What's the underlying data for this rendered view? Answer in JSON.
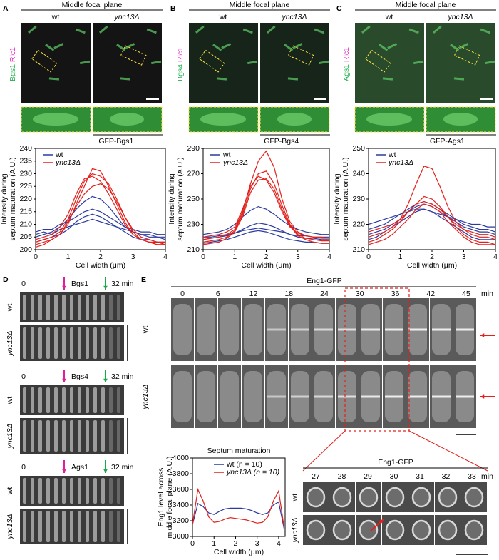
{
  "panels": {
    "A": {
      "letter": "A",
      "header": "Middle focal plane",
      "col_labels": [
        "wt",
        "ync13Δ"
      ],
      "channel": [
        "Bgs1",
        "Rlc1"
      ]
    },
    "B": {
      "letter": "B",
      "header": "Middle focal plane",
      "col_labels": [
        "wt",
        "ync13Δ"
      ],
      "channel": [
        "Bgs4",
        "Rlc1"
      ]
    },
    "C": {
      "letter": "C",
      "header": "Middle focal plane",
      "col_labels": [
        "wt",
        "ync13Δ"
      ],
      "channel": [
        "Ags1",
        "Rlc1"
      ]
    },
    "D": {
      "letter": "D",
      "kymographs": [
        {
          "start": "0",
          "protein": "Bgs1",
          "end": "32 min",
          "rows": [
            "wt",
            "ync13Δ"
          ]
        },
        {
          "start": "0",
          "protein": "Bgs4",
          "end": "32 min",
          "rows": [
            "wt",
            "ync13Δ"
          ]
        },
        {
          "start": "0",
          "protein": "Ags1",
          "end": "32 min",
          "rows": [
            "wt",
            "ync13Δ"
          ]
        }
      ]
    },
    "E": {
      "letter": "E",
      "title": "Eng1-GFP",
      "times": [
        "0",
        "6",
        "12",
        "18",
        "24",
        "30",
        "36",
        "42",
        "45"
      ],
      "unit": "min",
      "rows": [
        "wt",
        "ync13Δ"
      ],
      "inset": {
        "title": "Eng1-GFP",
        "times": [
          "27",
          "28",
          "29",
          "30",
          "31",
          "32",
          "33"
        ],
        "unit": "min",
        "rows": [
          "wt",
          "ync13Δ"
        ]
      }
    }
  },
  "chart_data": [
    {
      "type": "line",
      "title": "GFP-Bgs1",
      "xlabel": "Cell width (μm)",
      "ylabel": [
        "Intensity during",
        "septum maturation (A.U.)"
      ],
      "x": [
        0,
        0.25,
        0.5,
        0.75,
        1,
        1.25,
        1.5,
        1.75,
        2,
        2.25,
        2.5,
        2.75,
        3,
        3.25,
        3.5,
        3.75,
        4
      ],
      "xlim": [
        0,
        4
      ],
      "xticks": [
        0,
        1,
        2,
        3,
        4
      ],
      "ylim": [
        200,
        240
      ],
      "yticks": [
        200,
        205,
        210,
        215,
        220,
        225,
        230,
        235,
        240
      ],
      "series": [
        {
          "name": "wt",
          "color": "#2b3a9e",
          "values": [
            [
              205,
              206,
              207,
              209,
              212,
              216,
              219,
              221,
              220,
              217,
              213,
              209,
              207,
              206,
              205,
              205,
              204
            ],
            [
              207,
              208,
              208,
              210,
              211,
              213,
              215,
              216,
              215,
              213,
              211,
              209,
              208,
              207,
              207,
              206,
              206
            ],
            [
              203,
              204,
              205,
              206,
              208,
              211,
              213,
              214,
              213,
              211,
              209,
              207,
              205,
              204,
              204,
              203,
              203
            ],
            [
              206,
              207,
              206,
              208,
              209,
              210,
              211,
              212,
              211,
              210,
              209,
              208,
              207,
              206,
              206,
              205,
              205
            ]
          ]
        },
        {
          "name": "ync13Δ",
          "color": "#e3201b",
          "values": [
            [
              203,
              204,
              205,
              207,
              212,
              220,
              227,
              230,
              229,
              226,
              220,
              213,
              208,
              205,
              204,
              203,
              203
            ],
            [
              202,
              203,
              204,
              206,
              210,
              218,
              225,
              232,
              231,
              225,
              218,
              211,
              206,
              204,
              203,
              202,
              202
            ],
            [
              204,
              205,
              206,
              209,
              214,
              222,
              228,
              229,
              227,
              222,
              216,
              210,
              206,
              204,
              203,
              203,
              202
            ],
            [
              201,
              202,
              204,
              206,
              211,
              217,
              222,
              225,
              226,
              224,
              219,
              213,
              207,
              204,
              203,
              202,
              202
            ]
          ]
        }
      ]
    },
    {
      "type": "line",
      "title": "GFP-Bgs4",
      "xlabel": "Cell width (μm)",
      "ylabel": [
        "Intensity during",
        "septum maturation (A.U.)"
      ],
      "x": [
        0,
        0.25,
        0.5,
        0.75,
        1,
        1.25,
        1.5,
        1.75,
        2,
        2.25,
        2.5,
        2.75,
        3,
        3.25,
        3.5,
        3.75,
        4
      ],
      "xlim": [
        0,
        4
      ],
      "xticks": [
        0,
        1,
        2,
        3,
        4
      ],
      "ylim": [
        210,
        290
      ],
      "yticks": [
        210,
        230,
        250,
        270,
        290
      ],
      "series": [
        {
          "name": "wt",
          "color": "#2b3a9e",
          "values": [
            [
              222,
              223,
              224,
              226,
              230,
              236,
              241,
              244,
              242,
              238,
              233,
              229,
              226,
              224,
              223,
              222,
              222
            ],
            [
              218,
              219,
              220,
              221,
              223,
              226,
              229,
              231,
              230,
              228,
              225,
              222,
              220,
              219,
              219,
              218,
              218
            ],
            [
              215,
              216,
              217,
              218,
              220,
              222,
              224,
              225,
              224,
              222,
              220,
              218,
              217,
              216,
              216,
              215,
              215
            ],
            [
              220,
              220,
              221,
              222,
              223,
              225,
              226,
              227,
              226,
              225,
              224,
              222,
              221,
              221,
              220,
              220,
              220
            ]
          ]
        },
        {
          "name": "ync13Δ",
          "color": "#e3201b",
          "values": [
            [
              218,
              219,
              220,
              222,
              226,
              240,
              262,
              280,
              288,
              275,
              250,
              232,
              224,
              221,
              220,
              219,
              219
            ],
            [
              216,
              217,
              218,
              220,
              225,
              238,
              258,
              270,
              272,
              262,
              245,
              230,
              222,
              219,
              218,
              217,
              217
            ],
            [
              220,
              221,
              222,
              224,
              228,
              242,
              260,
              268,
              265,
              255,
              240,
              228,
              223,
              221,
              220,
              220,
              219
            ],
            [
              214,
              215,
              216,
              219,
              224,
              236,
              255,
              265,
              266,
              258,
              242,
              229,
              221,
              218,
              216,
              215,
              215
            ]
          ]
        }
      ]
    },
    {
      "type": "line",
      "title": "GFP-Ags1",
      "xlabel": "Cell width (μm)",
      "ylabel": [
        "Intensity during",
        "septum maturation (A.U.)"
      ],
      "x": [
        0,
        0.25,
        0.5,
        0.75,
        1,
        1.25,
        1.5,
        1.75,
        2,
        2.25,
        2.5,
        2.75,
        3,
        3.25,
        3.5,
        3.75,
        4
      ],
      "xlim": [
        0,
        4
      ],
      "xticks": [
        0,
        1,
        2,
        3,
        4
      ],
      "ylim": [
        210,
        250
      ],
      "yticks": [
        210,
        220,
        230,
        240,
        250
      ],
      "series": [
        {
          "name": "wt",
          "color": "#2b3a9e",
          "values": [
            [
              218,
              219,
              220,
              222,
              224,
              226,
              228,
              229,
              228,
              226,
              224,
              222,
              220,
              219,
              218,
              218,
              217
            ],
            [
              216,
              217,
              218,
              220,
              222,
              225,
              227,
              228,
              227,
              225,
              223,
              221,
              219,
              218,
              217,
              217,
              216
            ],
            [
              220,
              221,
              222,
              223,
              224,
              225,
              226,
              226,
              225,
              224,
              223,
              222,
              221,
              220,
              220,
              219,
              219
            ],
            [
              214,
              215,
              217,
              219,
              221,
              223,
              225,
              226,
              225,
              223,
              221,
              219,
              217,
              215,
              214,
              214,
              214
            ]
          ]
        },
        {
          "name": "ync13Δ",
          "color": "#e3201b",
          "values": [
            [
              215,
              216,
              217,
              219,
              222,
              228,
              236,
              243,
              242,
              235,
              227,
              221,
              218,
              216,
              215,
              215,
              214
            ],
            [
              213,
              214,
              216,
              218,
              221,
              225,
              228,
              231,
              230,
              227,
              223,
              219,
              216,
              214,
              213,
              213,
              212
            ],
            [
              217,
              218,
              219,
              220,
              222,
              225,
              228,
              229,
              228,
              226,
              223,
              220,
              218,
              217,
              216,
              216,
              215
            ],
            [
              212,
              213,
              214,
              216,
              219,
              222,
              226,
              228,
              227,
              225,
              221,
              218,
              215,
              213,
              212,
              212,
              212
            ]
          ]
        }
      ]
    },
    {
      "type": "line",
      "title": "Septum maturation",
      "xlabel": "Cell width (μm)",
      "ylabel": [
        "Eng1 level across",
        "middle focal plane (A.U.)"
      ],
      "x": [
        0,
        0.25,
        0.5,
        0.75,
        1,
        1.25,
        1.5,
        1.75,
        2,
        2.25,
        2.5,
        2.75,
        3,
        3.25,
        3.5,
        3.75,
        4,
        4.25
      ],
      "xlim": [
        0,
        4.3
      ],
      "xticks": [
        0,
        1,
        2,
        3,
        4
      ],
      "ylim": [
        3000,
        4000
      ],
      "yticks": [
        3000,
        3200,
        3400,
        3600,
        3800,
        4000
      ],
      "series": [
        {
          "name": "wt (n = 10)",
          "color": "#2b3a9e",
          "values": [
            3150,
            3420,
            3380,
            3300,
            3280,
            3320,
            3350,
            3360,
            3360,
            3360,
            3350,
            3330,
            3300,
            3280,
            3300,
            3400,
            3440,
            3100
          ]
        },
        {
          "name": "ync13Δ (n = 10)",
          "color": "#e3201b",
          "values": [
            3150,
            3600,
            3450,
            3250,
            3180,
            3190,
            3220,
            3240,
            3230,
            3220,
            3210,
            3190,
            3170,
            3180,
            3250,
            3450,
            3580,
            3120
          ]
        }
      ]
    }
  ]
}
